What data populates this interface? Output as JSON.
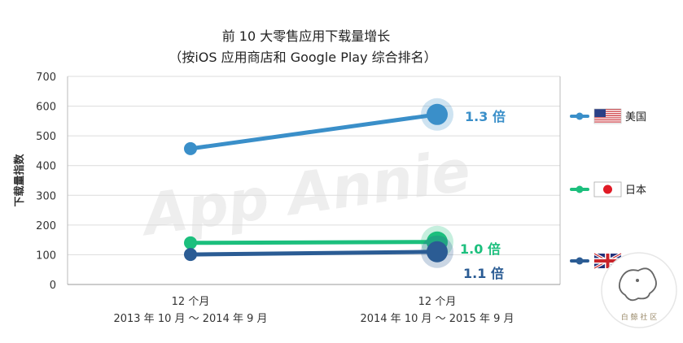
{
  "colors": {
    "us": "#3a8fc9",
    "jp": "#1cbf7d",
    "uk": "#2b5c94",
    "axis": "#bbbbbb",
    "grid": "#dcdcdc"
  },
  "chart_data": {
    "type": "line",
    "title": "前 10 大零售应用下载量增长",
    "subtitle": "（按iOS 应用商店和 Google Play 综合排名）",
    "ylabel": "下载量指数",
    "xlabel": "",
    "ylim": [
      0,
      700
    ],
    "yticks": [
      0,
      100,
      200,
      300,
      400,
      500,
      600,
      700
    ],
    "categories": [
      [
        "12 个月",
        "2013 年 10 月 ～ 2014 年 9 月"
      ],
      [
        "12 个月",
        "2014 年 10 月 ～ 2015 年 9 月"
      ]
    ],
    "grid": true,
    "legend_position": "right",
    "series": [
      {
        "name": "美国",
        "key": "us",
        "values": [
          457,
          572
        ],
        "growth_label": "1.3 倍",
        "icon": "us-flag-icon"
      },
      {
        "name": "日本",
        "key": "jp",
        "values": [
          140,
          143
        ],
        "growth_label": "1.0 倍",
        "icon": "japan-flag-icon"
      },
      {
        "name": "英国",
        "key": "uk",
        "values": [
          101,
          110
        ],
        "growth_label": "1.1 倍",
        "icon": "uk-flag-icon"
      }
    ]
  },
  "watermark": "App Annie",
  "badge_text": "白 鲸 社 区"
}
